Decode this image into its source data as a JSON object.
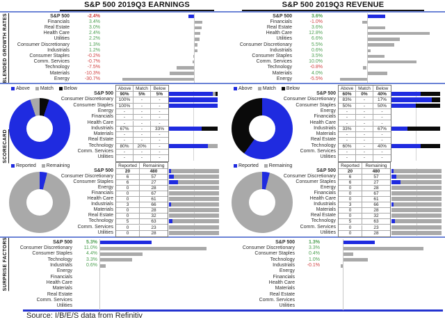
{
  "source_note": "Source: I/B/E/S data from Refinitiv",
  "section_labels": [
    "BLENDED GROWTH RATES",
    "SCORECARD",
    "SURPRISE FACTORS"
  ],
  "colors": {
    "above_blue": "#1f2be0",
    "match_gray": "#a9a9a9",
    "below_black": "#0a0a0a",
    "bar_gray": "#a9a9a9",
    "positive_green": "#4a9e4f",
    "negative_red": "#d04040",
    "divider_blue": "#6b83d6",
    "bottom_line_blue": "#2433cf",
    "axis_gray": "#c8c8c8"
  },
  "chart_data": [
    {
      "id": "earnings-growth",
      "type": "bar",
      "orientation": "horizontal",
      "title": "S&P 500 2019Q3 EARNINGS",
      "unit": "%",
      "xlim": [
        -33,
        11
      ],
      "categories": [
        "S&P 500",
        "Financials",
        "Real Estate",
        "Health Care",
        "Utilities",
        "Consumer Discretionary",
        "Industrials",
        "Consumer Staples",
        "Comm. Services",
        "Technology",
        "Materials",
        "Energy"
      ],
      "values": [
        -2.4,
        3.4,
        3.0,
        2.4,
        2.2,
        1.3,
        1.2,
        -0.2,
        -0.7,
        -7.5,
        -10.3,
        -30.7
      ],
      "labels": [
        "-2.4%",
        "3.4%",
        "3.0%",
        "2.4%",
        "2.2%",
        "1.3%",
        "1.2%",
        "-0.2%",
        "-0.7%",
        "-7.5%",
        "-10.3%",
        "-30.7%"
      ]
    },
    {
      "id": "revenue-growth",
      "type": "bar",
      "orientation": "horizontal",
      "title": "S&P 500 2019Q3 REVENUE",
      "unit": "%",
      "xlim": [
        -6.5,
        15.5
      ],
      "categories": [
        "S&P 500",
        "Financials",
        "Real Estate",
        "Health Care",
        "Utilities",
        "Consumer Discretionary",
        "Industrials",
        "Consumer Staples",
        "Comm. Services",
        "Technology",
        "Materials",
        "Energy"
      ],
      "values": [
        3.6,
        -1.0,
        3.6,
        12.8,
        6.6,
        5.5,
        0.6,
        3.5,
        10.0,
        -0.8,
        4.0,
        -5.5
      ],
      "labels": [
        "3.6%",
        "-1.0%",
        "3.6%",
        "12.8%",
        "6.6%",
        "5.5%",
        "0.6%",
        "3.5%",
        "10.0%",
        "-0.8%",
        "4.0%",
        "-5.5%"
      ]
    },
    {
      "id": "earnings-scorecard-amb",
      "type": "donut+table+stacked-bar",
      "legend": [
        "Above",
        "Match",
        "Below"
      ],
      "donut": [
        {
          "name": "Below",
          "value": 5
        },
        {
          "name": "Above",
          "value": 90
        },
        {
          "name": "Match",
          "value": 5
        }
      ],
      "table_headers": [
        "Above",
        "Match",
        "Below"
      ],
      "rows": [
        {
          "label": "S&P 500",
          "cells": [
            "90%",
            "5%",
            "5%"
          ],
          "bar": [
            90,
            5,
            5
          ]
        },
        {
          "label": "Consumer Discretionary",
          "cells": [
            "100%",
            "-",
            "-"
          ],
          "bar": [
            100,
            0,
            0
          ]
        },
        {
          "label": "Consumer Staples",
          "cells": [
            "100%",
            "-",
            "-"
          ],
          "bar": [
            100,
            0,
            0
          ]
        },
        {
          "label": "Energy",
          "cells": [
            "-",
            "-",
            "-"
          ],
          "bar": null
        },
        {
          "label": "Financials",
          "cells": [
            "-",
            "-",
            "-"
          ],
          "bar": null
        },
        {
          "label": "Health Care",
          "cells": [
            "-",
            "-",
            "-"
          ],
          "bar": null
        },
        {
          "label": "Industrials",
          "cells": [
            "67%",
            "-",
            "33%"
          ],
          "bar": [
            67,
            0,
            33
          ]
        },
        {
          "label": "Materials",
          "cells": [
            "-",
            "-",
            "-"
          ],
          "bar": null
        },
        {
          "label": "Real Estate",
          "cells": [
            "-",
            "-",
            "-"
          ],
          "bar": null
        },
        {
          "label": "Technology",
          "cells": [
            "80%",
            "20%",
            "-"
          ],
          "bar": [
            80,
            20,
            0
          ]
        },
        {
          "label": "Comm. Services",
          "cells": [
            "-",
            "-",
            "-"
          ],
          "bar": null
        },
        {
          "label": "Utilities",
          "cells": [
            "-",
            "-",
            "-"
          ],
          "bar": null
        }
      ]
    },
    {
      "id": "revenue-scorecard-amb",
      "type": "donut+table+stacked-bar",
      "legend": [
        "Above",
        "Match",
        "Below"
      ],
      "donut": [
        {
          "name": "Above",
          "value": 60
        },
        {
          "name": "Below",
          "value": 40
        }
      ],
      "table_headers": [
        "Above",
        "Match",
        "Below"
      ],
      "rows": [
        {
          "label": "S&P 500",
          "cells": [
            "60%",
            "0%",
            "40%"
          ],
          "bar": [
            60,
            0,
            40
          ]
        },
        {
          "label": "Consumer Discretionary",
          "cells": [
            "83%",
            "-",
            "17%"
          ],
          "bar": [
            83,
            0,
            17
          ]
        },
        {
          "label": "Consumer Staples",
          "cells": [
            "50%",
            "-",
            "50%"
          ],
          "bar": [
            50,
            0,
            50
          ]
        },
        {
          "label": "Energy",
          "cells": [
            "-",
            "-",
            "-"
          ],
          "bar": null
        },
        {
          "label": "Financials",
          "cells": [
            "-",
            "-",
            "-"
          ],
          "bar": null
        },
        {
          "label": "Health Care",
          "cells": [
            "-",
            "-",
            "-"
          ],
          "bar": null
        },
        {
          "label": "Industrials",
          "cells": [
            "33%",
            "-",
            "67%"
          ],
          "bar": [
            33,
            0,
            67
          ]
        },
        {
          "label": "Materials",
          "cells": [
            "-",
            "-",
            "-"
          ],
          "bar": null
        },
        {
          "label": "Real Estate",
          "cells": [
            "-",
            "-",
            "-"
          ],
          "bar": null
        },
        {
          "label": "Technology",
          "cells": [
            "60%",
            "-",
            "40%"
          ],
          "bar": [
            60,
            0,
            40
          ]
        },
        {
          "label": "Comm. Services",
          "cells": [
            "-",
            "-",
            "-"
          ],
          "bar": null
        },
        {
          "label": "Utilities",
          "cells": [
            "-",
            "-",
            "-"
          ],
          "bar": null
        }
      ]
    },
    {
      "id": "earnings-scorecard-rep",
      "type": "donut+table+bar",
      "legend": [
        "Reported",
        "Remaining"
      ],
      "donut": [
        {
          "name": "Reported",
          "value": 20
        },
        {
          "name": "Remaining",
          "value": 480
        }
      ],
      "table_headers": [
        "Reported",
        "Remaining"
      ],
      "rows": [
        {
          "label": "S&P 500",
          "reported": 20,
          "remaining": 480
        },
        {
          "label": "Consumer Discretionary",
          "reported": 6,
          "remaining": 57
        },
        {
          "label": "Consumer Staples",
          "reported": 6,
          "remaining": 27
        },
        {
          "label": "Energy",
          "reported": 0,
          "remaining": 28
        },
        {
          "label": "Financials",
          "reported": 0,
          "remaining": 67
        },
        {
          "label": "Health Care",
          "reported": 0,
          "remaining": 61
        },
        {
          "label": "Industrials",
          "reported": 3,
          "remaining": 66
        },
        {
          "label": "Materials",
          "reported": 0,
          "remaining": 28
        },
        {
          "label": "Real Estate",
          "reported": 0,
          "remaining": 32
        },
        {
          "label": "Technology",
          "reported": 5,
          "remaining": 63
        },
        {
          "label": "Comm. Services",
          "reported": 0,
          "remaining": 23
        },
        {
          "label": "Utilities",
          "reported": 0,
          "remaining": 28
        }
      ]
    },
    {
      "id": "revenue-scorecard-rep",
      "type": "donut+table+bar",
      "legend": [
        "Reported",
        "Remaining"
      ],
      "donut": [
        {
          "name": "Reported",
          "value": 20
        },
        {
          "name": "Remaining",
          "value": 480
        }
      ],
      "table_headers": [
        "Reported",
        "Remaining"
      ],
      "rows": [
        {
          "label": "S&P 500",
          "reported": 20,
          "remaining": 480
        },
        {
          "label": "Consumer Discretionary",
          "reported": 6,
          "remaining": 57
        },
        {
          "label": "Consumer Staples",
          "reported": 6,
          "remaining": 27
        },
        {
          "label": "Energy",
          "reported": 0,
          "remaining": 28
        },
        {
          "label": "Financials",
          "reported": 0,
          "remaining": 67
        },
        {
          "label": "Health Care",
          "reported": 0,
          "remaining": 61
        },
        {
          "label": "Industrials",
          "reported": 3,
          "remaining": 66
        },
        {
          "label": "Materials",
          "reported": 0,
          "remaining": 28
        },
        {
          "label": "Real Estate",
          "reported": 0,
          "remaining": 32
        },
        {
          "label": "Technology",
          "reported": 5,
          "remaining": 63
        },
        {
          "label": "Comm. Services",
          "reported": 0,
          "remaining": 23
        },
        {
          "label": "Utilities",
          "reported": 0,
          "remaining": 28
        }
      ]
    },
    {
      "id": "earnings-surprise",
      "type": "bar",
      "orientation": "horizontal",
      "title": "",
      "unit": "%",
      "xlim": [
        0,
        12.4
      ],
      "categories": [
        "S&P 500",
        "Consumer Discretionary",
        "Consumer Staples",
        "Technology",
        "Industrials",
        "Energy",
        "Financials",
        "Health Care",
        "Materials",
        "Real Estate",
        "Comm. Services",
        "Utilities"
      ],
      "values": [
        5.3,
        11.0,
        4.4,
        3.3,
        0.6,
        null,
        null,
        null,
        null,
        null,
        null,
        null
      ],
      "labels": [
        "5.3%",
        "11.0%",
        "4.4%",
        "3.3%",
        "0.6%",
        "",
        "",
        "",
        "",
        "",
        "",
        ""
      ]
    },
    {
      "id": "revenue-surprise",
      "type": "bar",
      "orientation": "horizontal",
      "title": "",
      "unit": "%",
      "xlim": [
        -0.15,
        4.1
      ],
      "categories": [
        "S&P 500",
        "Consumer Discretionary",
        "Consumer Staples",
        "Technology",
        "Industrials",
        "Energy",
        "Financials",
        "Health Care",
        "Materials",
        "Real Estate",
        "Comm. Services",
        "Utilities"
      ],
      "values": [
        1.3,
        3.3,
        0.4,
        1.0,
        -0.1,
        null,
        null,
        null,
        null,
        null,
        null,
        null
      ],
      "labels": [
        "1.3%",
        "3.3%",
        "0.4%",
        "1.0%",
        "-0.1%",
        "",
        "",
        "",
        "",
        "",
        "",
        ""
      ]
    }
  ]
}
